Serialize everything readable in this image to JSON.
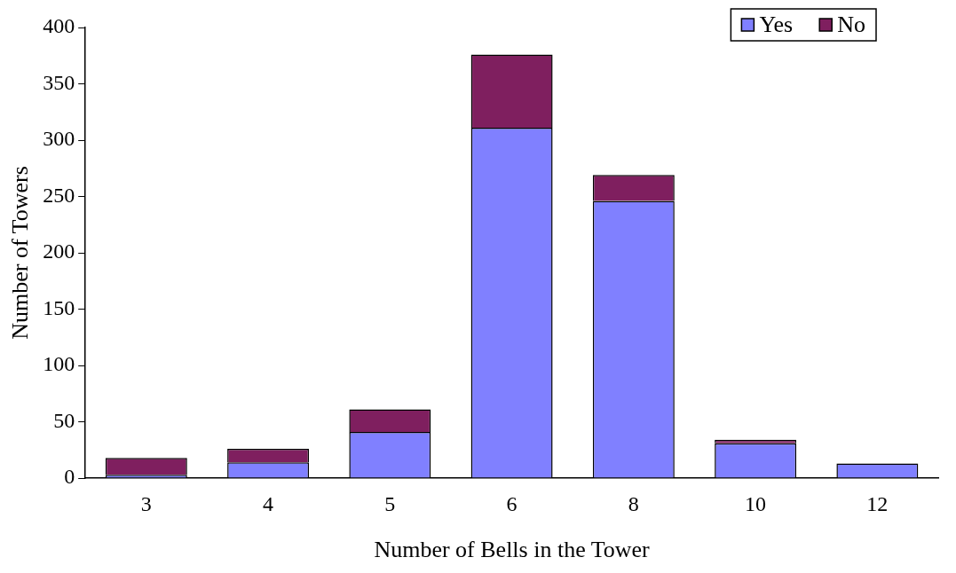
{
  "chart_data": {
    "type": "bar",
    "stacked": true,
    "xlabel": "Number of Bells in the Tower",
    "ylabel": "Number of Towers",
    "categories": [
      "3",
      "4",
      "5",
      "6",
      "8",
      "10",
      "12"
    ],
    "series": [
      {
        "name": "Yes",
        "color": "#8080ff",
        "values": [
          3,
          14,
          41,
          311,
          246,
          31,
          13
        ]
      },
      {
        "name": "No",
        "color": "#7f1f5f",
        "values": [
          15,
          12,
          20,
          65,
          23,
          3,
          0
        ]
      }
    ],
    "ylim": [
      0,
      400
    ],
    "yticks": [
      0,
      50,
      100,
      150,
      200,
      250,
      300,
      350,
      400
    ],
    "grid": false,
    "legend": "top right"
  }
}
